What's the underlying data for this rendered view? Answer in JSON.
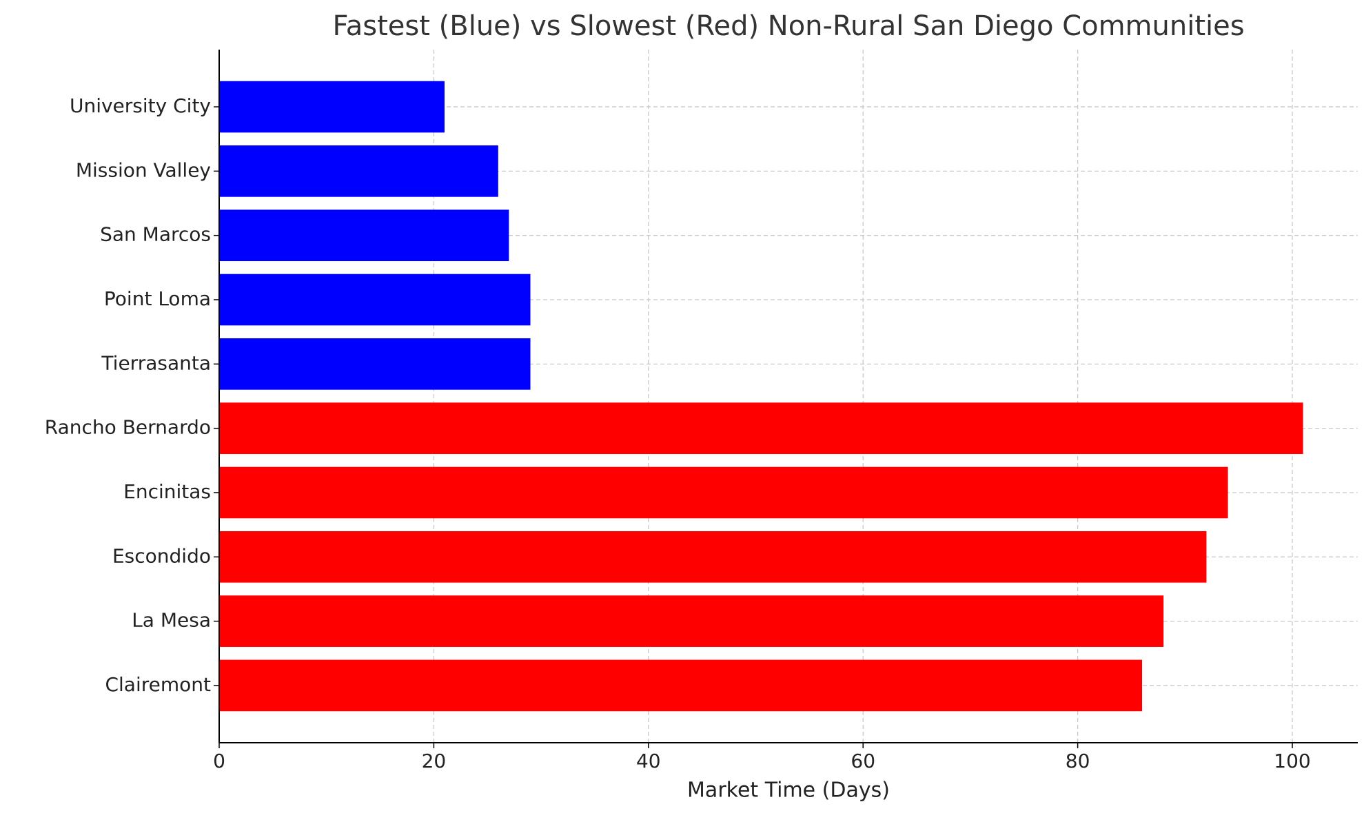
{
  "chart_data": {
    "type": "barh",
    "title": "Fastest (Blue) vs Slowest (Red) Non-Rural San Diego Communities",
    "x_label": "Market Time (Days)",
    "categories": [
      "University City",
      "Mission Valley",
      "San Marcos",
      "Point Loma",
      "Tierrasanta",
      "Rancho Bernardo",
      "Encinitas",
      "Escondido",
      "La Mesa",
      "Clairemont"
    ],
    "values": [
      21,
      26,
      27,
      29,
      29,
      101,
      94,
      92,
      88,
      86
    ],
    "colors": [
      "#0000ff",
      "#0000ff",
      "#0000ff",
      "#0000ff",
      "#0000ff",
      "#ff0000",
      "#ff0000",
      "#ff0000",
      "#ff0000",
      "#ff0000"
    ],
    "xlim": [
      0,
      106.1
    ],
    "xticks": [
      0,
      20,
      40,
      60,
      80,
      100
    ],
    "grid": true
  }
}
